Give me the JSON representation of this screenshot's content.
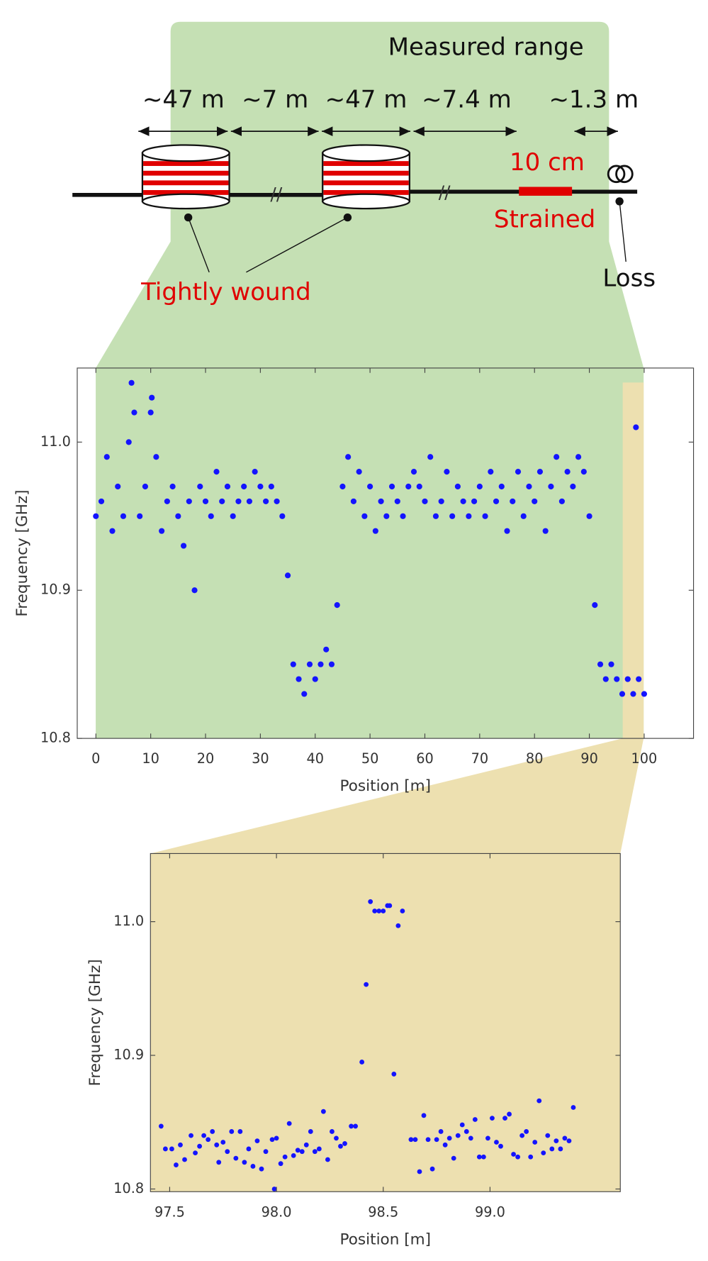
{
  "diagram": {
    "title": "Measured range",
    "lengths": [
      "~47 m",
      "~7 m",
      "~47 m",
      "~7.4 m",
      "~1.3 m"
    ],
    "strain_length": "10 cm",
    "strained": "Strained",
    "wound": "Tightly wound",
    "loss": "Loss"
  },
  "chart_data": [
    {
      "type": "scatter",
      "xlabel": "Position [m]",
      "ylabel": "Frequency [GHz]",
      "color": "#1414ff",
      "x": [
        0,
        1,
        2,
        3,
        4,
        5,
        6,
        6.5,
        7,
        8,
        9,
        10,
        10.2,
        11,
        12,
        13,
        14,
        15,
        16,
        17,
        18,
        19,
        20,
        21,
        22,
        23,
        24,
        25,
        26,
        27,
        28,
        29,
        30,
        31,
        32,
        33,
        34,
        35,
        36,
        37,
        38,
        39,
        40,
        41,
        42,
        43,
        44,
        45,
        46,
        47,
        48,
        49,
        50,
        51,
        52,
        53,
        54,
        55,
        56,
        57,
        58,
        59,
        60,
        61,
        62,
        63,
        64,
        65,
        66,
        67,
        68,
        69,
        70,
        71,
        72,
        73,
        74,
        75,
        76,
        77,
        78,
        79,
        80,
        81,
        82,
        83,
        84,
        85,
        86,
        87,
        88,
        89,
        90,
        91,
        92,
        93,
        94,
        95,
        96,
        97,
        98,
        98.5,
        99,
        100
      ],
      "values": [
        10.95,
        10.96,
        10.99,
        10.94,
        10.97,
        10.95,
        11.0,
        11.04,
        11.02,
        10.95,
        10.97,
        11.02,
        11.03,
        10.99,
        10.94,
        10.96,
        10.97,
        10.95,
        10.93,
        10.96,
        10.9,
        10.97,
        10.96,
        10.95,
        10.98,
        10.96,
        10.97,
        10.95,
        10.96,
        10.97,
        10.96,
        10.98,
        10.97,
        10.96,
        10.97,
        10.96,
        10.95,
        10.91,
        10.85,
        10.84,
        10.83,
        10.85,
        10.84,
        10.85,
        10.86,
        10.85,
        10.89,
        10.97,
        10.99,
        10.96,
        10.98,
        10.95,
        10.97,
        10.94,
        10.96,
        10.95,
        10.97,
        10.96,
        10.95,
        10.97,
        10.98,
        10.97,
        10.96,
        10.99,
        10.95,
        10.96,
        10.98,
        10.95,
        10.97,
        10.96,
        10.95,
        10.96,
        10.97,
        10.95,
        10.98,
        10.96,
        10.97,
        10.94,
        10.96,
        10.98,
        10.95,
        10.97,
        10.96,
        10.98,
        10.94,
        10.97,
        10.99,
        10.96,
        10.98,
        10.97,
        10.99,
        10.98,
        10.95,
        10.89,
        10.85,
        10.84,
        10.85,
        10.84,
        10.83,
        10.84,
        10.83,
        11.01,
        10.84,
        10.83
      ],
      "xlim": [
        -3.4,
        109
      ],
      "ylim": [
        10.8,
        11.05
      ],
      "xticks": [
        0,
        10,
        20,
        30,
        40,
        50,
        60,
        70,
        80,
        90,
        100
      ],
      "yticks": [
        {
          "value": 10.8,
          "label": "10.8"
        },
        {
          "value": 10.9,
          "label": "10.9"
        },
        {
          "value": 11,
          "label": "11.0"
        }
      ]
    },
    {
      "type": "scatter",
      "xlabel": "Position [m]",
      "ylabel": "Frequency [GHz]",
      "color": "#1414ff",
      "x": [
        97.46,
        97.48,
        97.51,
        97.53,
        97.55,
        97.57,
        97.6,
        97.62,
        97.64,
        97.66,
        97.68,
        97.7,
        97.72,
        97.73,
        97.75,
        97.77,
        97.79,
        97.81,
        97.83,
        97.85,
        97.87,
        97.89,
        97.91,
        97.93,
        97.95,
        97.98,
        97.99,
        98.0,
        98.02,
        98.04,
        98.06,
        98.08,
        98.1,
        98.12,
        98.14,
        98.16,
        98.18,
        98.2,
        98.22,
        98.24,
        98.26,
        98.28,
        98.3,
        98.32,
        98.35,
        98.37,
        98.4,
        98.42,
        98.44,
        98.46,
        98.48,
        98.5,
        98.52,
        98.53,
        98.55,
        98.57,
        98.59,
        98.63,
        98.65,
        98.67,
        98.69,
        98.71,
        98.73,
        98.75,
        98.77,
        98.79,
        98.81,
        98.83,
        98.85,
        98.87,
        98.89,
        98.91,
        98.93,
        98.95,
        98.97,
        98.99,
        99.01,
        99.03,
        99.05,
        99.07,
        99.09,
        99.11,
        99.13,
        99.15,
        99.17,
        99.19,
        99.21,
        99.23,
        99.25,
        99.27,
        99.29,
        99.31,
        99.33,
        99.35,
        99.37,
        99.39
      ],
      "values": [
        10.847,
        10.83,
        10.83,
        10.818,
        10.833,
        10.822,
        10.84,
        10.827,
        10.832,
        10.84,
        10.837,
        10.843,
        10.833,
        10.82,
        10.835,
        10.828,
        10.843,
        10.823,
        10.843,
        10.82,
        10.83,
        10.817,
        10.836,
        10.815,
        10.828,
        10.837,
        10.8,
        10.838,
        10.819,
        10.824,
        10.849,
        10.825,
        10.829,
        10.828,
        10.833,
        10.843,
        10.828,
        10.83,
        10.858,
        10.822,
        10.843,
        10.838,
        10.832,
        10.834,
        10.847,
        10.847,
        10.895,
        10.953,
        11.015,
        11.008,
        11.008,
        11.008,
        11.012,
        11.012,
        10.886,
        10.997,
        11.008,
        10.837,
        10.837,
        10.813,
        10.855,
        10.837,
        10.815,
        10.837,
        10.843,
        10.833,
        10.838,
        10.823,
        10.84,
        10.848,
        10.843,
        10.838,
        10.852,
        10.824,
        10.824,
        10.838,
        10.853,
        10.835,
        10.832,
        10.853,
        10.856,
        10.826,
        10.824,
        10.84,
        10.843,
        10.824,
        10.835,
        10.866,
        10.827,
        10.84,
        10.83,
        10.836,
        10.83,
        10.838,
        10.836,
        10.861
      ],
      "xlim": [
        97.41,
        99.61
      ],
      "ylim": [
        10.798,
        11.051
      ],
      "xticks": [
        {
          "value": 97.5,
          "label": "97.5"
        },
        {
          "value": 98,
          "label": "98.0"
        },
        {
          "value": 98.5,
          "label": "98.5"
        },
        {
          "value": 99,
          "label": "99.0"
        }
      ],
      "yticks": [
        {
          "value": 10.8,
          "label": "10.8"
        },
        {
          "value": 10.9,
          "label": "10.9"
        },
        {
          "value": 11,
          "label": "11.0"
        }
      ]
    }
  ]
}
